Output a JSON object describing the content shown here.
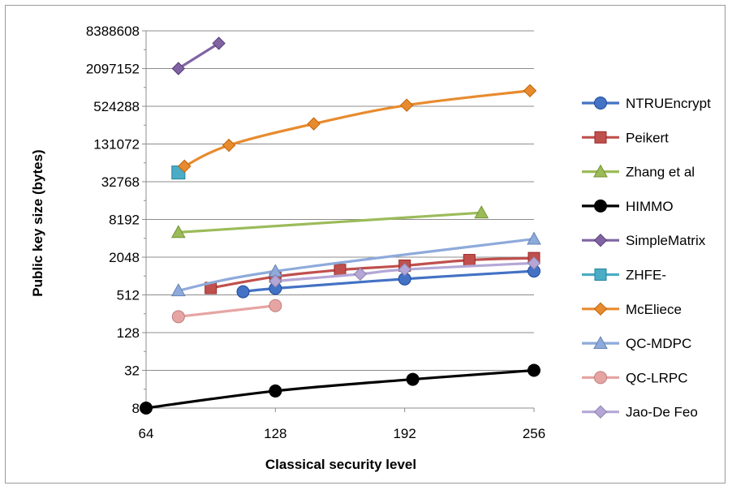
{
  "chart_data": {
    "type": "line",
    "title": "",
    "xlabel": "Classical security level",
    "ylabel": "Public key size (bytes)",
    "xlim": [
      64,
      256
    ],
    "ylim": [
      8,
      8388608
    ],
    "yscale": "log2",
    "grid": "horizontal",
    "legend_position": "right",
    "x_ticks": [
      "64",
      "128",
      "192",
      "256"
    ],
    "y_ticks": [
      "8",
      "32",
      "128",
      "512",
      "2048",
      "8192",
      "32768",
      "131072",
      "524288",
      "2097152",
      "8388608"
    ],
    "series": [
      {
        "name": "NTRUEncrypt",
        "color": "#4472C4",
        "marker": "circle",
        "line": true,
        "points": [
          [
            112,
            575
          ],
          [
            128,
            650
          ],
          [
            192,
            920
          ],
          [
            256,
            1230
          ]
        ]
      },
      {
        "name": "Peikert",
        "color": "#C0504D",
        "marker": "square",
        "line": true,
        "points": [
          [
            96,
            660
          ],
          [
            128,
            1000
          ],
          [
            160,
            1280
          ],
          [
            192,
            1500
          ],
          [
            224,
            1840
          ],
          [
            256,
            1980
          ]
        ]
      },
      {
        "name": "Zhang et al",
        "color": "#9BBB59",
        "marker": "triangle",
        "line": true,
        "points": [
          [
            80,
            5100
          ],
          [
            230,
            10500
          ]
        ]
      },
      {
        "name": "HIMMO",
        "color": "#000000",
        "marker": "circle",
        "line": true,
        "points": [
          [
            64,
            8
          ],
          [
            128,
            15
          ],
          [
            196,
            23
          ],
          [
            256,
            32
          ]
        ]
      },
      {
        "name": "SimpleMatrix",
        "color": "#8064A2",
        "marker": "diamond",
        "line": true,
        "points": [
          [
            80,
            2097152
          ],
          [
            100,
            5300000
          ]
        ]
      },
      {
        "name": "ZHFE-",
        "color": "#4BACC6",
        "marker": "square",
        "line": false,
        "points": [
          [
            80,
            46000
          ]
        ]
      },
      {
        "name": "McEliece",
        "color": "#E88B2E",
        "marker": "diamond",
        "line": true,
        "points": [
          [
            83,
            58000
          ],
          [
            105,
            125000
          ],
          [
            147,
            275000
          ],
          [
            193,
            545000
          ],
          [
            254,
            930000
          ]
        ]
      },
      {
        "name": "QC-MDPC",
        "color": "#8EAADB",
        "marker": "triangle",
        "line": true,
        "points": [
          [
            80,
            600
          ],
          [
            128,
            1220
          ],
          [
            256,
            4000
          ]
        ]
      },
      {
        "name": "QC-LRPC",
        "color": "#E6A5A3",
        "marker": "circle",
        "line": true,
        "points": [
          [
            80,
            230
          ],
          [
            128,
            345
          ]
        ]
      },
      {
        "name": "Jao-De Feo",
        "color": "#B4A7D6",
        "marker": "diamond",
        "line": true,
        "points": [
          [
            128,
            850
          ],
          [
            170,
            1100
          ],
          [
            192,
            1300
          ],
          [
            256,
            1650
          ]
        ]
      }
    ]
  }
}
